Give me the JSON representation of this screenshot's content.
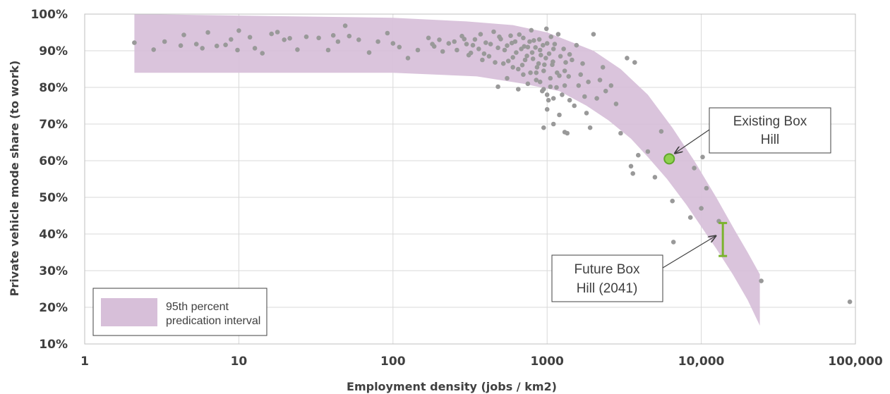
{
  "chart_data": {
    "type": "scatter",
    "title": "",
    "xlabel": "Employment density (jobs / km2)",
    "ylabel": "Private vehicle mode share (to work)",
    "x_scale": "log",
    "xlim": [
      1,
      100000
    ],
    "ylim": [
      10,
      100
    ],
    "x_ticks": [
      1,
      10,
      100,
      1000,
      10000,
      100000
    ],
    "x_tick_labels": [
      "1",
      "10",
      "100",
      "1000",
      "10,000",
      "100,000"
    ],
    "y_ticks": [
      10,
      20,
      30,
      40,
      50,
      60,
      70,
      80,
      90,
      100
    ],
    "y_tick_labels": [
      "10%",
      "20%",
      "30%",
      "40%",
      "50%",
      "60%",
      "70%",
      "80%",
      "90%",
      "100%"
    ],
    "grid": "vertical and horizontal",
    "colors": {
      "points": "#999999",
      "band": "#d7bfd9",
      "highlight": "#8fd14f",
      "highlight_stroke": "#5fa82a",
      "range": "#7bb32e",
      "grid": "#d9d9d9",
      "plot_border": "#bfbfbf"
    },
    "prediction_band": {
      "label": "95th percent predication interval",
      "upper": [
        [
          2.1,
          100
        ],
        [
          100,
          99
        ],
        [
          300,
          98
        ],
        [
          600,
          97
        ],
        [
          1000,
          95
        ],
        [
          2000,
          90
        ],
        [
          3000,
          85
        ],
        [
          4500,
          78
        ],
        [
          6500,
          69
        ],
        [
          9000,
          60
        ],
        [
          12500,
          50
        ],
        [
          16500,
          41
        ],
        [
          20000,
          35
        ],
        [
          24000,
          29
        ]
      ],
      "lower": [
        [
          24000,
          15
        ],
        [
          20000,
          22
        ],
        [
          16000,
          29
        ],
        [
          12500,
          36
        ],
        [
          10000,
          42
        ],
        [
          8000,
          48
        ],
        [
          6000,
          55
        ],
        [
          4500,
          61
        ],
        [
          3500,
          66
        ],
        [
          2500,
          71
        ],
        [
          1800,
          75
        ],
        [
          1200,
          79
        ],
        [
          700,
          81
        ],
        [
          350,
          83
        ],
        [
          100,
          84
        ],
        [
          2.1,
          84
        ]
      ]
    },
    "points": [
      [
        2.1,
        92.2
      ],
      [
        2.8,
        90.3
      ],
      [
        3.3,
        92.5
      ],
      [
        4.2,
        91.4
      ],
      [
        4.4,
        94.3
      ],
      [
        5.3,
        91.8
      ],
      [
        5.8,
        90.7
      ],
      [
        6.3,
        95.0
      ],
      [
        7.2,
        91.3
      ],
      [
        8.2,
        91.6
      ],
      [
        8.9,
        93.1
      ],
      [
        9.8,
        90.2
      ],
      [
        10.0,
        95.5
      ],
      [
        11.8,
        93.7
      ],
      [
        12.7,
        90.7
      ],
      [
        14.2,
        89.3
      ],
      [
        16.3,
        94.6
      ],
      [
        17.8,
        95.1
      ],
      [
        19.7,
        93.0
      ],
      [
        21.4,
        93.4
      ],
      [
        24.0,
        90.3
      ],
      [
        27.4,
        93.8
      ],
      [
        33.0,
        93.5
      ],
      [
        38.0,
        90.2
      ],
      [
        41.0,
        94.2
      ],
      [
        44.0,
        92.5
      ],
      [
        49.0,
        96.8
      ],
      [
        52.0,
        94.0
      ],
      [
        60.0,
        93.0
      ],
      [
        70.0,
        89.5
      ],
      [
        80.0,
        92.5
      ],
      [
        92.0,
        94.8
      ],
      [
        100.0,
        92.0
      ],
      [
        110.0,
        91.0
      ],
      [
        125.0,
        88.0
      ],
      [
        145.0,
        90.2
      ],
      [
        170.0,
        93.5
      ],
      [
        185.0,
        91.2
      ],
      [
        200.0,
        93.0
      ],
      [
        230.0,
        92.0
      ],
      [
        260.0,
        90.2
      ],
      [
        280.0,
        94.0
      ],
      [
        300.0,
        91.8
      ],
      [
        320.0,
        89.4
      ],
      [
        340.0,
        93.1
      ],
      [
        360.0,
        90.5
      ],
      [
        380.0,
        87.5
      ],
      [
        400.0,
        92.2
      ],
      [
        420.0,
        88.5
      ],
      [
        450.0,
        95.2
      ],
      [
        480.0,
        90.8
      ],
      [
        500.0,
        93.2
      ],
      [
        520.0,
        86.5
      ],
      [
        550.0,
        91.4
      ],
      [
        580.0,
        94.1
      ],
      [
        600.0,
        88.2
      ],
      [
        620.0,
        92.5
      ],
      [
        650.0,
        85.0
      ],
      [
        680.0,
        90.5
      ],
      [
        700.0,
        93.5
      ],
      [
        720.0,
        87.5
      ],
      [
        750.0,
        91.0
      ],
      [
        780.0,
        84.0
      ],
      [
        800.0,
        89.5
      ],
      [
        820.0,
        92.8
      ],
      [
        850.0,
        82.0
      ],
      [
        880.0,
        86.5
      ],
      [
        900.0,
        90.2
      ],
      [
        930.0,
        79.0
      ],
      [
        950.0,
        84.5
      ],
      [
        980.0,
        88.0
      ],
      [
        1000.0,
        92.0
      ],
      [
        1020.0,
        76.5
      ],
      [
        1050.0,
        82.5
      ],
      [
        1080.0,
        86.2
      ],
      [
        1100.0,
        90.5
      ],
      [
        1150.0,
        80.0
      ],
      [
        1200.0,
        72.5
      ],
      [
        1250.0,
        78.0
      ],
      [
        1300.0,
        84.5
      ],
      [
        1350.0,
        67.5
      ],
      [
        1400.0,
        89.0
      ],
      [
        1500.0,
        75.0
      ],
      [
        1600.0,
        80.5
      ],
      [
        1700.0,
        86.5
      ],
      [
        1800.0,
        73.0
      ],
      [
        1900.0,
        69.0
      ],
      [
        2000.0,
        94.5
      ],
      [
        2100.0,
        77.0
      ],
      [
        2300.0,
        85.5
      ],
      [
        2600.0,
        80.5
      ],
      [
        2800.0,
        75.5
      ],
      [
        3000.0,
        67.5
      ],
      [
        3300.0,
        88.0
      ],
      [
        3500.0,
        58.5
      ],
      [
        3600.0,
        56.5
      ],
      [
        3700.0,
        86.8
      ],
      [
        3900.0,
        61.5
      ],
      [
        4500.0,
        62.5
      ],
      [
        5000.0,
        55.5
      ],
      [
        5500.0,
        68.0
      ],
      [
        6500.0,
        49.0
      ],
      [
        6600.0,
        37.8
      ],
      [
        8500.0,
        44.5
      ],
      [
        9000.0,
        58.0
      ],
      [
        10000.0,
        47.0
      ],
      [
        10200.0,
        61.0
      ],
      [
        10800.0,
        52.5
      ],
      [
        13000.0,
        43.5
      ],
      [
        24500.0,
        27.2
      ],
      [
        92000.0,
        21.5
      ],
      [
        180,
        91.8
      ],
      [
        210,
        89.8
      ],
      [
        250,
        92.5
      ],
      [
        290,
        93.2
      ],
      [
        310,
        88.8
      ],
      [
        330,
        91.5
      ],
      [
        370,
        94.5
      ],
      [
        390,
        89.2
      ],
      [
        430,
        91.8
      ],
      [
        460,
        86.8
      ],
      [
        490,
        93.8
      ],
      [
        530,
        90.2
      ],
      [
        560,
        87.2
      ],
      [
        590,
        92.1
      ],
      [
        630,
        89.5
      ],
      [
        660,
        94.4
      ],
      [
        690,
        86.1
      ],
      [
        710,
        91.2
      ],
      [
        740,
        88.6
      ],
      [
        770,
        92.5
      ],
      [
        790,
        95.6
      ],
      [
        810,
        87.8
      ],
      [
        840,
        90.9
      ],
      [
        860,
        85.5
      ],
      [
        890,
        93.1
      ],
      [
        910,
        88.8
      ],
      [
        940,
        91.5
      ],
      [
        960,
        86.2
      ],
      [
        990,
        96.0
      ],
      [
        1030,
        89.2
      ],
      [
        1060,
        93.8
      ],
      [
        1090,
        87.0
      ],
      [
        1120,
        91.8
      ],
      [
        1160,
        84.0
      ],
      [
        1180,
        94.5
      ],
      [
        1220,
        88.5
      ],
      [
        1280,
        90.5
      ],
      [
        1320,
        86.8
      ],
      [
        1380,
        83.0
      ],
      [
        1450,
        87.5
      ],
      [
        1550,
        91.5
      ],
      [
        1650,
        83.5
      ],
      [
        1750,
        77.5
      ],
      [
        1850,
        81.5
      ],
      [
        2200,
        82.0
      ],
      [
        2400,
        79.0
      ],
      [
        850,
        84.0
      ],
      [
        900,
        81.5
      ],
      [
        950,
        79.5
      ],
      [
        1000,
        78.0
      ],
      [
        1050,
        80.2
      ],
      [
        1100,
        77.0
      ],
      [
        1200,
        83.2
      ],
      [
        1300,
        80.5
      ],
      [
        700,
        83.5
      ],
      [
        750,
        81.0
      ],
      [
        600,
        85.5
      ],
      [
        550,
        82.5
      ],
      [
        480,
        80.2
      ],
      [
        650,
        79.5
      ],
      [
        1400,
        76.5
      ],
      [
        1000,
        74.0
      ],
      [
        1100,
        70.0
      ],
      [
        950,
        69.0
      ],
      [
        1300,
        67.8
      ]
    ],
    "highlight_point": {
      "x": 6200,
      "y": 60.5,
      "label": "Existing Box Hill"
    },
    "range_marker": {
      "x": 13800,
      "y_low": 34,
      "y_high": 43,
      "label": "Future Box Hill (2041)"
    }
  },
  "legend": {
    "label_line1": "95th percent",
    "label_line2": "predication interval",
    "position": "bottom-left"
  },
  "annotations": {
    "existing": {
      "line1": "Existing Box",
      "line2": "Hill"
    },
    "future": {
      "line1": "Future Box",
      "line2": "Hill (2041)"
    }
  }
}
